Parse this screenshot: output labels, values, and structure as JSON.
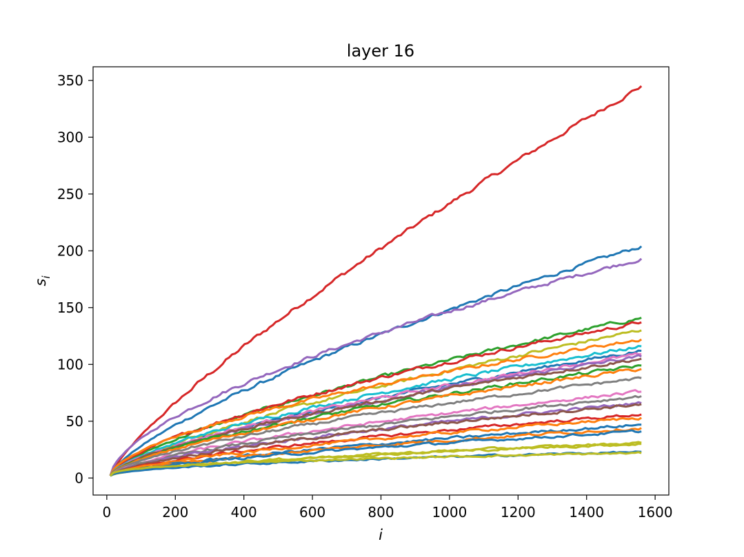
{
  "chart_data": {
    "type": "line",
    "title": "layer 16",
    "xlabel": "i",
    "ylabel": "s_i",
    "ylabel_main": "s",
    "ylabel_sub": "i",
    "xlim": [
      -40,
      1640
    ],
    "ylim": [
      -15,
      362
    ],
    "xticks": [
      0,
      200,
      400,
      600,
      800,
      1000,
      1200,
      1400,
      1600
    ],
    "yticks": [
      0,
      50,
      100,
      150,
      200,
      250,
      300,
      350
    ],
    "x_start": 10,
    "x_end": 1560,
    "y_start": 2,
    "grid": false,
    "legend": "none",
    "series": [
      {
        "color": "#d62728",
        "end": 345,
        "curve": 0.8,
        "noise": 1.6
      },
      {
        "color": "#1f77b4",
        "end": 204,
        "curve": 0.72,
        "noise": 1.3
      },
      {
        "color": "#9467bd",
        "end": 193,
        "curve": 0.62,
        "noise": 1.3
      },
      {
        "color": "#2ca02c",
        "end": 141,
        "curve": 0.7,
        "noise": 1.3
      },
      {
        "color": "#d62728",
        "end": 137,
        "curve": 0.66,
        "noise": 1.3
      },
      {
        "color": "#bcbd22",
        "end": 130,
        "curve": 0.72,
        "noise": 1.3
      },
      {
        "color": "#ff7f0e",
        "end": 122,
        "curve": 0.6,
        "noise": 1.2
      },
      {
        "color": "#17becf",
        "end": 116,
        "curve": 0.66,
        "noise": 1.3
      },
      {
        "color": "#1f77b4",
        "end": 112,
        "curve": 0.7,
        "noise": 1.2
      },
      {
        "color": "#e377c2",
        "end": 109,
        "curve": 0.66,
        "noise": 1.2
      },
      {
        "color": "#9467bd",
        "end": 107,
        "curve": 0.68,
        "noise": 1.2
      },
      {
        "color": "#8c564b",
        "end": 105,
        "curve": 0.66,
        "noise": 1.2
      },
      {
        "color": "#2ca02c",
        "end": 99,
        "curve": 0.66,
        "noise": 1.2
      },
      {
        "color": "#ff7f0e",
        "end": 96,
        "curve": 0.66,
        "noise": 1.2
      },
      {
        "color": "#7f7f7f",
        "end": 88,
        "curve": 0.66,
        "noise": 1.1
      },
      {
        "color": "#e377c2",
        "end": 76,
        "curve": 0.66,
        "noise": 1.1
      },
      {
        "color": "#7f7f7f",
        "end": 72,
        "curve": 0.66,
        "noise": 1.1
      },
      {
        "color": "#9467bd",
        "end": 66,
        "curve": 0.66,
        "noise": 1.1
      },
      {
        "color": "#8c564b",
        "end": 65,
        "curve": 0.66,
        "noise": 1.1
      },
      {
        "color": "#d62728",
        "end": 56,
        "curve": 0.66,
        "noise": 1.0
      },
      {
        "color": "#ff7f0e",
        "end": 53,
        "curve": 0.66,
        "noise": 1.0
      },
      {
        "color": "#1f77b4",
        "end": 47,
        "curve": 0.7,
        "noise": 1.0
      },
      {
        "color": "#ff7f0e",
        "end": 44,
        "curve": 0.66,
        "noise": 1.0
      },
      {
        "color": "#1f77b4",
        "end": 41,
        "curve": 0.66,
        "noise": 0.9
      },
      {
        "color": "#bcbd22",
        "end": 31,
        "curve": 0.62,
        "noise": 0.8
      },
      {
        "color": "#bcbd22",
        "end": 30,
        "curve": 0.6,
        "noise": 0.8
      },
      {
        "color": "#1f77b4",
        "end": 23,
        "curve": 0.52,
        "noise": 0.7
      },
      {
        "color": "#bcbd22",
        "end": 22,
        "curve": 0.4,
        "noise": 0.6
      }
    ]
  }
}
